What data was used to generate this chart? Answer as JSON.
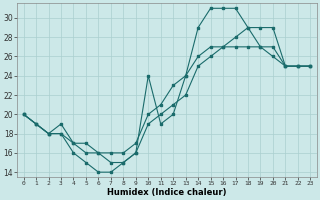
{
  "background_color": "#cce8e8",
  "grid_color": "#aacfcf",
  "line_color": "#1a6b6b",
  "xlabel": "Humidex (Indice chaleur)",
  "ylabel_ticks": [
    14,
    16,
    18,
    20,
    22,
    24,
    26,
    28,
    30
  ],
  "xlim": [
    -0.5,
    23.5
  ],
  "ylim": [
    13.5,
    31.5
  ],
  "xticks": [
    0,
    1,
    2,
    3,
    4,
    5,
    6,
    7,
    8,
    9,
    10,
    11,
    12,
    13,
    14,
    15,
    16,
    17,
    18,
    19,
    20,
    21,
    22,
    23
  ],
  "line1_x": [
    0,
    1,
    2,
    3,
    4,
    5,
    6,
    7,
    8,
    9,
    10,
    11,
    12,
    13,
    14,
    15,
    16,
    17,
    18,
    19,
    20,
    21,
    22,
    23
  ],
  "line1_y": [
    20,
    19,
    18,
    19,
    17,
    16,
    16,
    15,
    15,
    16,
    19,
    20,
    21,
    22,
    25,
    26,
    27,
    28,
    29,
    27,
    26,
    25,
    25,
    25
  ],
  "line2_x": [
    0,
    1,
    2,
    3,
    4,
    5,
    6,
    7,
    8,
    9,
    10,
    11,
    12,
    13,
    14,
    15,
    16,
    17,
    18,
    19,
    20,
    21,
    22,
    23
  ],
  "line2_y": [
    20,
    19,
    18,
    18,
    16,
    15,
    14,
    14,
    15,
    16,
    24,
    19,
    20,
    24,
    29,
    31,
    31,
    31,
    29,
    29,
    29,
    25,
    25,
    25
  ],
  "line3_x": [
    0,
    1,
    2,
    3,
    4,
    5,
    6,
    7,
    8,
    9,
    10,
    11,
    12,
    13,
    14,
    15,
    16,
    17,
    18,
    19,
    20,
    21,
    22,
    23
  ],
  "line3_y": [
    20,
    19,
    18,
    18,
    17,
    17,
    16,
    16,
    16,
    17,
    20,
    21,
    23,
    24,
    26,
    27,
    27,
    27,
    27,
    27,
    27,
    25,
    25,
    25
  ]
}
